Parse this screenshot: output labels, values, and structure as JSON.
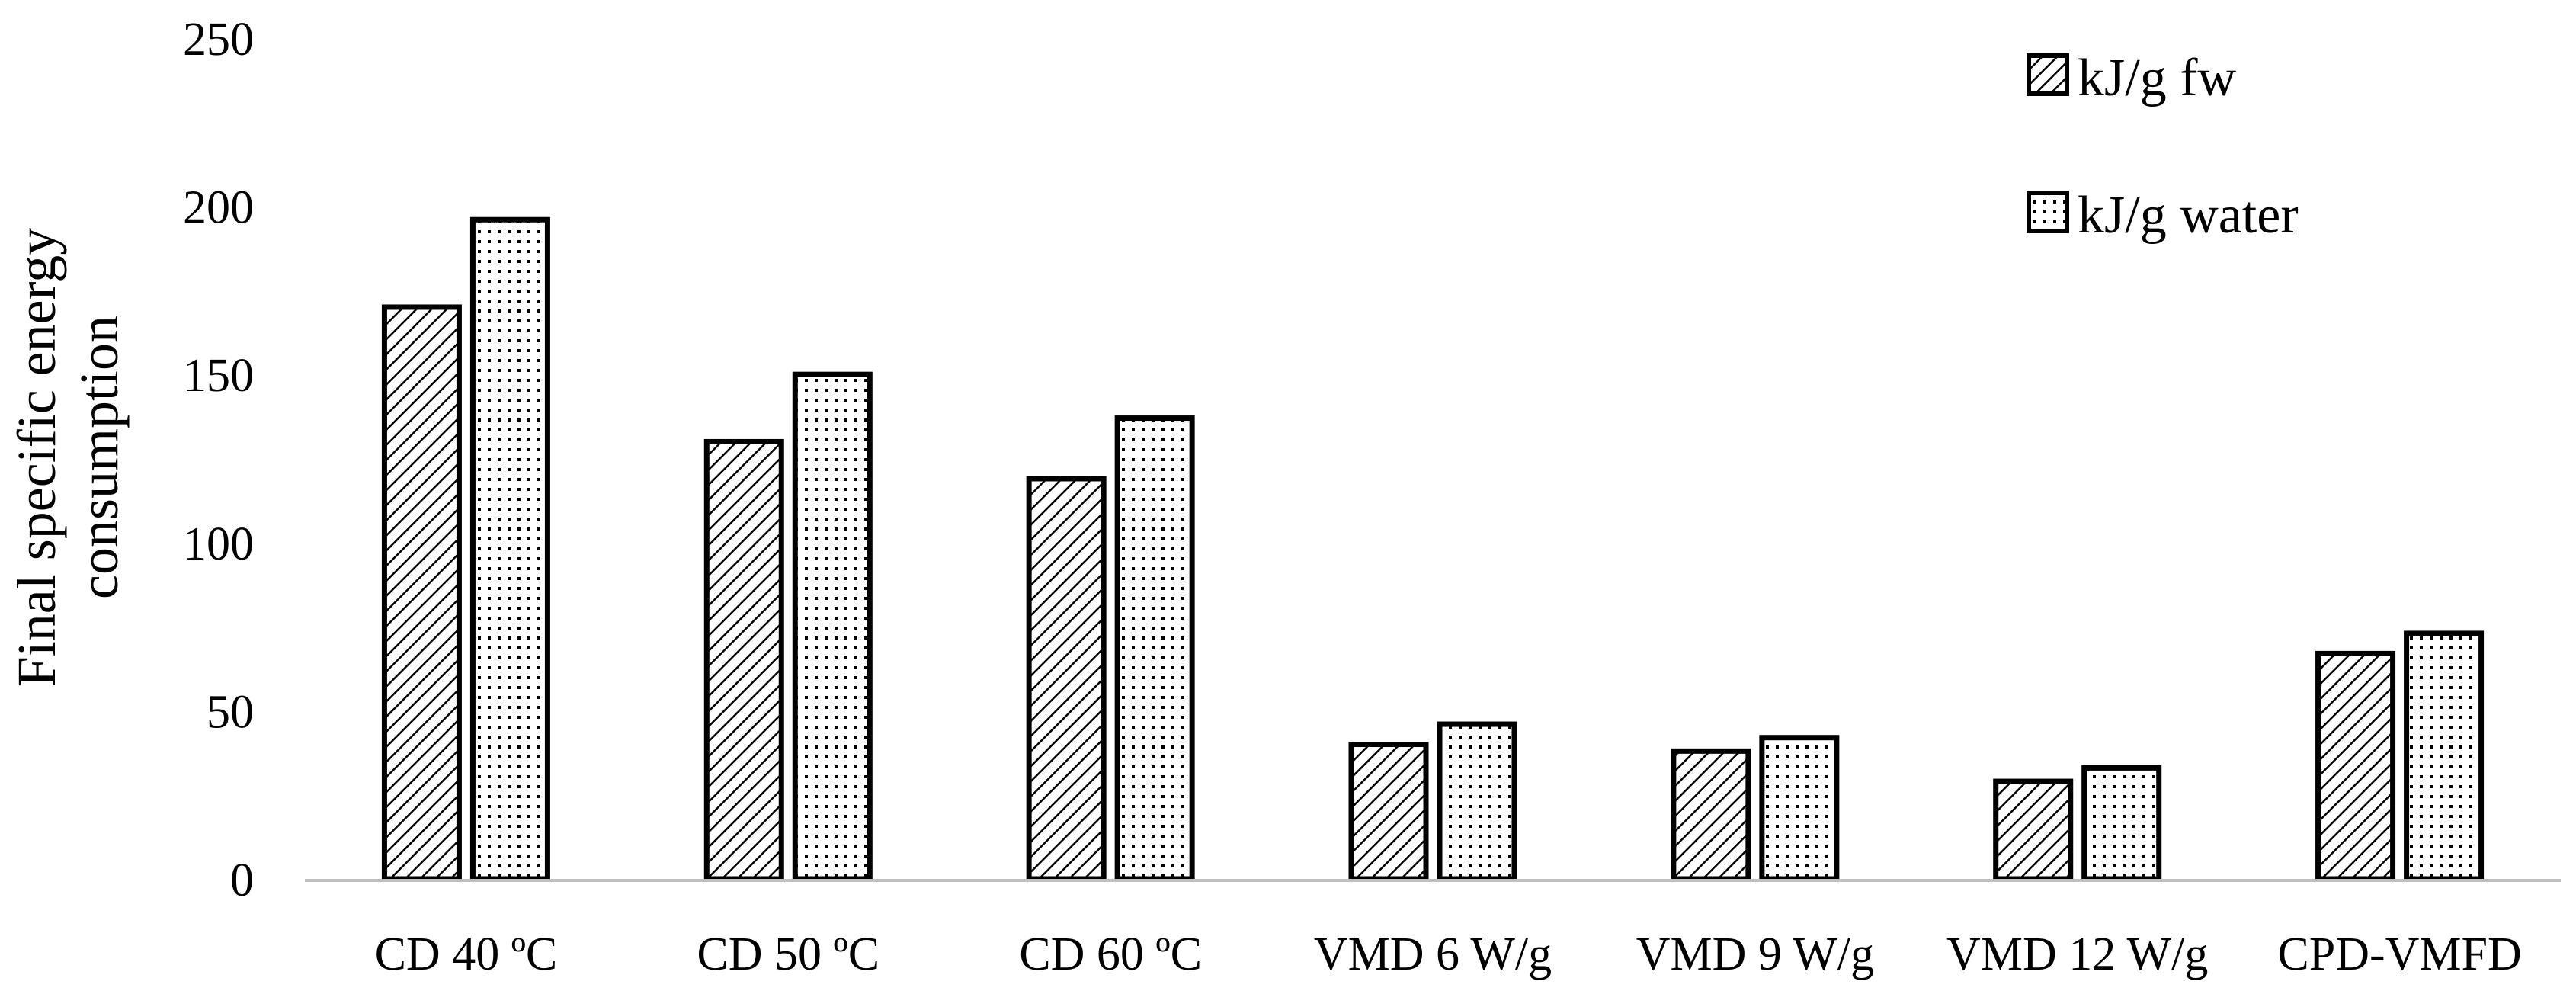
{
  "chart_data": {
    "type": "bar",
    "title": "",
    "xlabel": "",
    "ylabel_lines": [
      "Final specific energy",
      "consumption"
    ],
    "categories": [
      "CD 40 ºC",
      "CD 50 ºC",
      "CD 60 ºC",
      "VMD 6 W/g",
      "VMD 9 W/g",
      "VMD 12 W/g",
      "CPD-VMFD"
    ],
    "series": [
      {
        "name": "kJ/g fw",
        "pattern": "diagonal-hatch",
        "values": [
          170,
          130,
          119,
          40,
          38,
          29,
          67
        ]
      },
      {
        "name": "kJ/g water",
        "pattern": "dots",
        "values": [
          196,
          150,
          137,
          46,
          42,
          33,
          73
        ]
      }
    ],
    "ylim": [
      0,
      250
    ],
    "yticks": [
      0,
      50,
      100,
      150,
      200,
      250
    ],
    "grid": false,
    "legend_position": "top-right"
  }
}
